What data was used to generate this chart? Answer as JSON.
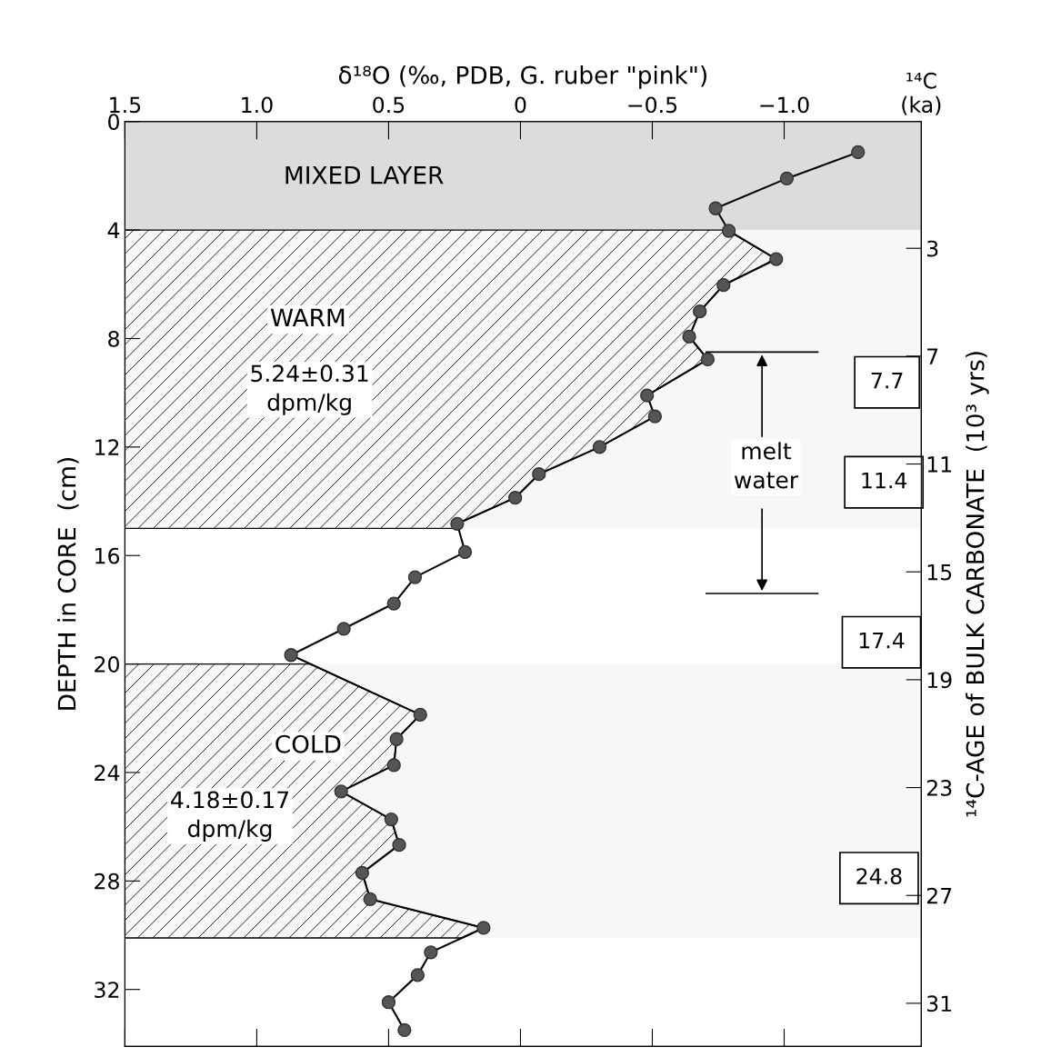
{
  "chart_data": {
    "type": "line",
    "orientation": "horizontal",
    "xlabel": "δ¹⁸O (‰, PDB, G. ruber \"pink\")",
    "ylabel": "DEPTH in CORE  (cm)",
    "y2label": "¹⁴C-AGE of BULK CARBONATE  (10³ yrs)",
    "xlim": [
      1.5,
      -1.52
    ],
    "xticks": [
      {
        "value": 1.5,
        "label": "1.5"
      },
      {
        "value": 1.0,
        "label": "1.0"
      },
      {
        "value": 0.5,
        "label": "0.5"
      },
      0,
      {
        "value": -0.5,
        "label": "−0.5"
      },
      {
        "value": -1.0,
        "label": "−1.0"
      }
    ],
    "ylim": [
      34.1,
      0
    ],
    "yticks": [
      0,
      4,
      8,
      12,
      16,
      20,
      24,
      28,
      32
    ],
    "y2lim": [
      32.6,
      -1.7
    ],
    "y2ticks": [
      3,
      7,
      11,
      15,
      19,
      23,
      27,
      31
    ],
    "marker": "circle",
    "line_style": "solid",
    "series": [
      {
        "color": "#555555",
        "x": [
          1.13,
          2.1,
          3.2,
          4.03,
          5.07,
          6.03,
          7.0,
          7.93,
          8.77,
          10.1,
          10.87,
          12.0,
          13.0,
          13.87,
          14.83,
          15.87,
          16.8,
          17.77,
          18.7,
          19.67,
          21.87,
          22.77,
          23.73,
          24.7,
          25.73,
          26.67,
          27.7,
          28.67,
          29.73,
          30.63,
          31.47,
          32.47,
          33.5
        ],
        "values": [
          -1.28,
          -1.01,
          -0.74,
          -0.79,
          -0.97,
          -0.77,
          -0.68,
          -0.64,
          -0.71,
          -0.48,
          -0.51,
          -0.3,
          -0.07,
          0.02,
          0.24,
          0.21,
          0.4,
          0.48,
          0.67,
          0.87,
          0.38,
          0.47,
          0.48,
          0.68,
          0.49,
          0.46,
          0.6,
          0.57,
          0.14,
          0.34,
          0.39,
          0.5,
          0.44
        ]
      }
    ],
    "bands": [
      {
        "axis": "y",
        "from": 0,
        "to": 4.1,
        "label": "MIXED LAYER",
        "color": "#dcdcdc"
      },
      {
        "axis": "y",
        "from": 4.0,
        "to": 15.0,
        "label": "WARM",
        "color": "#f7f7f7"
      },
      {
        "axis": "y",
        "from": 20.0,
        "to": 30.1,
        "label": "COLD",
        "color": "#f7f7f7"
      }
    ],
    "ref_lines": [
      {
        "axis": "y",
        "value": 8.5
      },
      {
        "axis": "y",
        "value": 17.4
      }
    ],
    "annotations": [
      "5.24±0.31\ndpm/kg",
      "4.18±0.17\ndpm/kg",
      "7.7",
      "11.4",
      "17.4",
      "24.8",
      "melt\nwater",
      "¹⁴C\n(ka)"
    ]
  }
}
